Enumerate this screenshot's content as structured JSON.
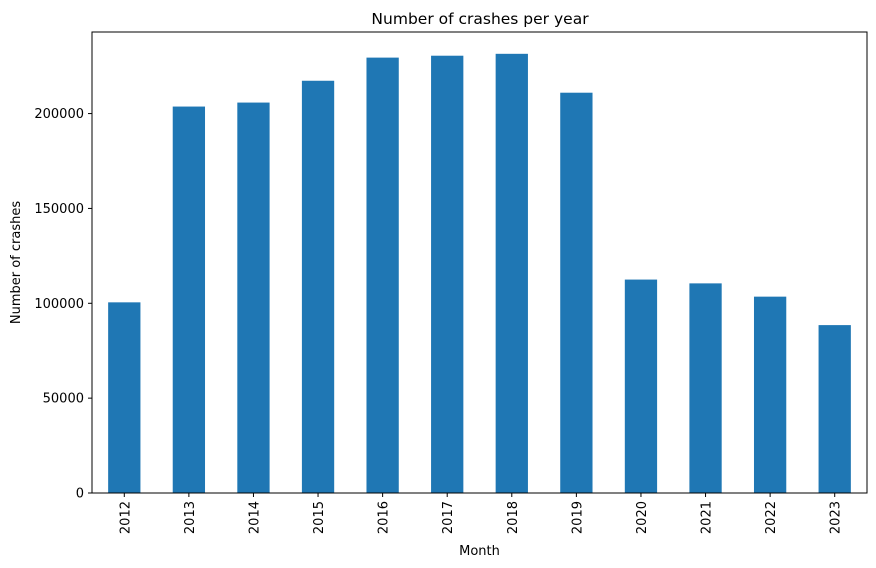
{
  "chart_data": {
    "type": "bar",
    "title": "Number of crashes per year",
    "xlabel": "Month",
    "ylabel": "Number of crashes",
    "categories": [
      "2012",
      "2013",
      "2014",
      "2015",
      "2016",
      "2017",
      "2018",
      "2019",
      "2020",
      "2021",
      "2022",
      "2023"
    ],
    "values": [
      100500,
      203700,
      205800,
      217300,
      229500,
      230500,
      231500,
      211000,
      112500,
      110500,
      103500,
      88500
    ],
    "ylim": [
      0,
      243000
    ],
    "yticks": [
      0,
      50000,
      100000,
      150000,
      200000
    ],
    "ytick_labels": [
      "0",
      "50000",
      "100000",
      "150000",
      "200000"
    ],
    "grid": false,
    "bar_color": "#1f77b4"
  }
}
